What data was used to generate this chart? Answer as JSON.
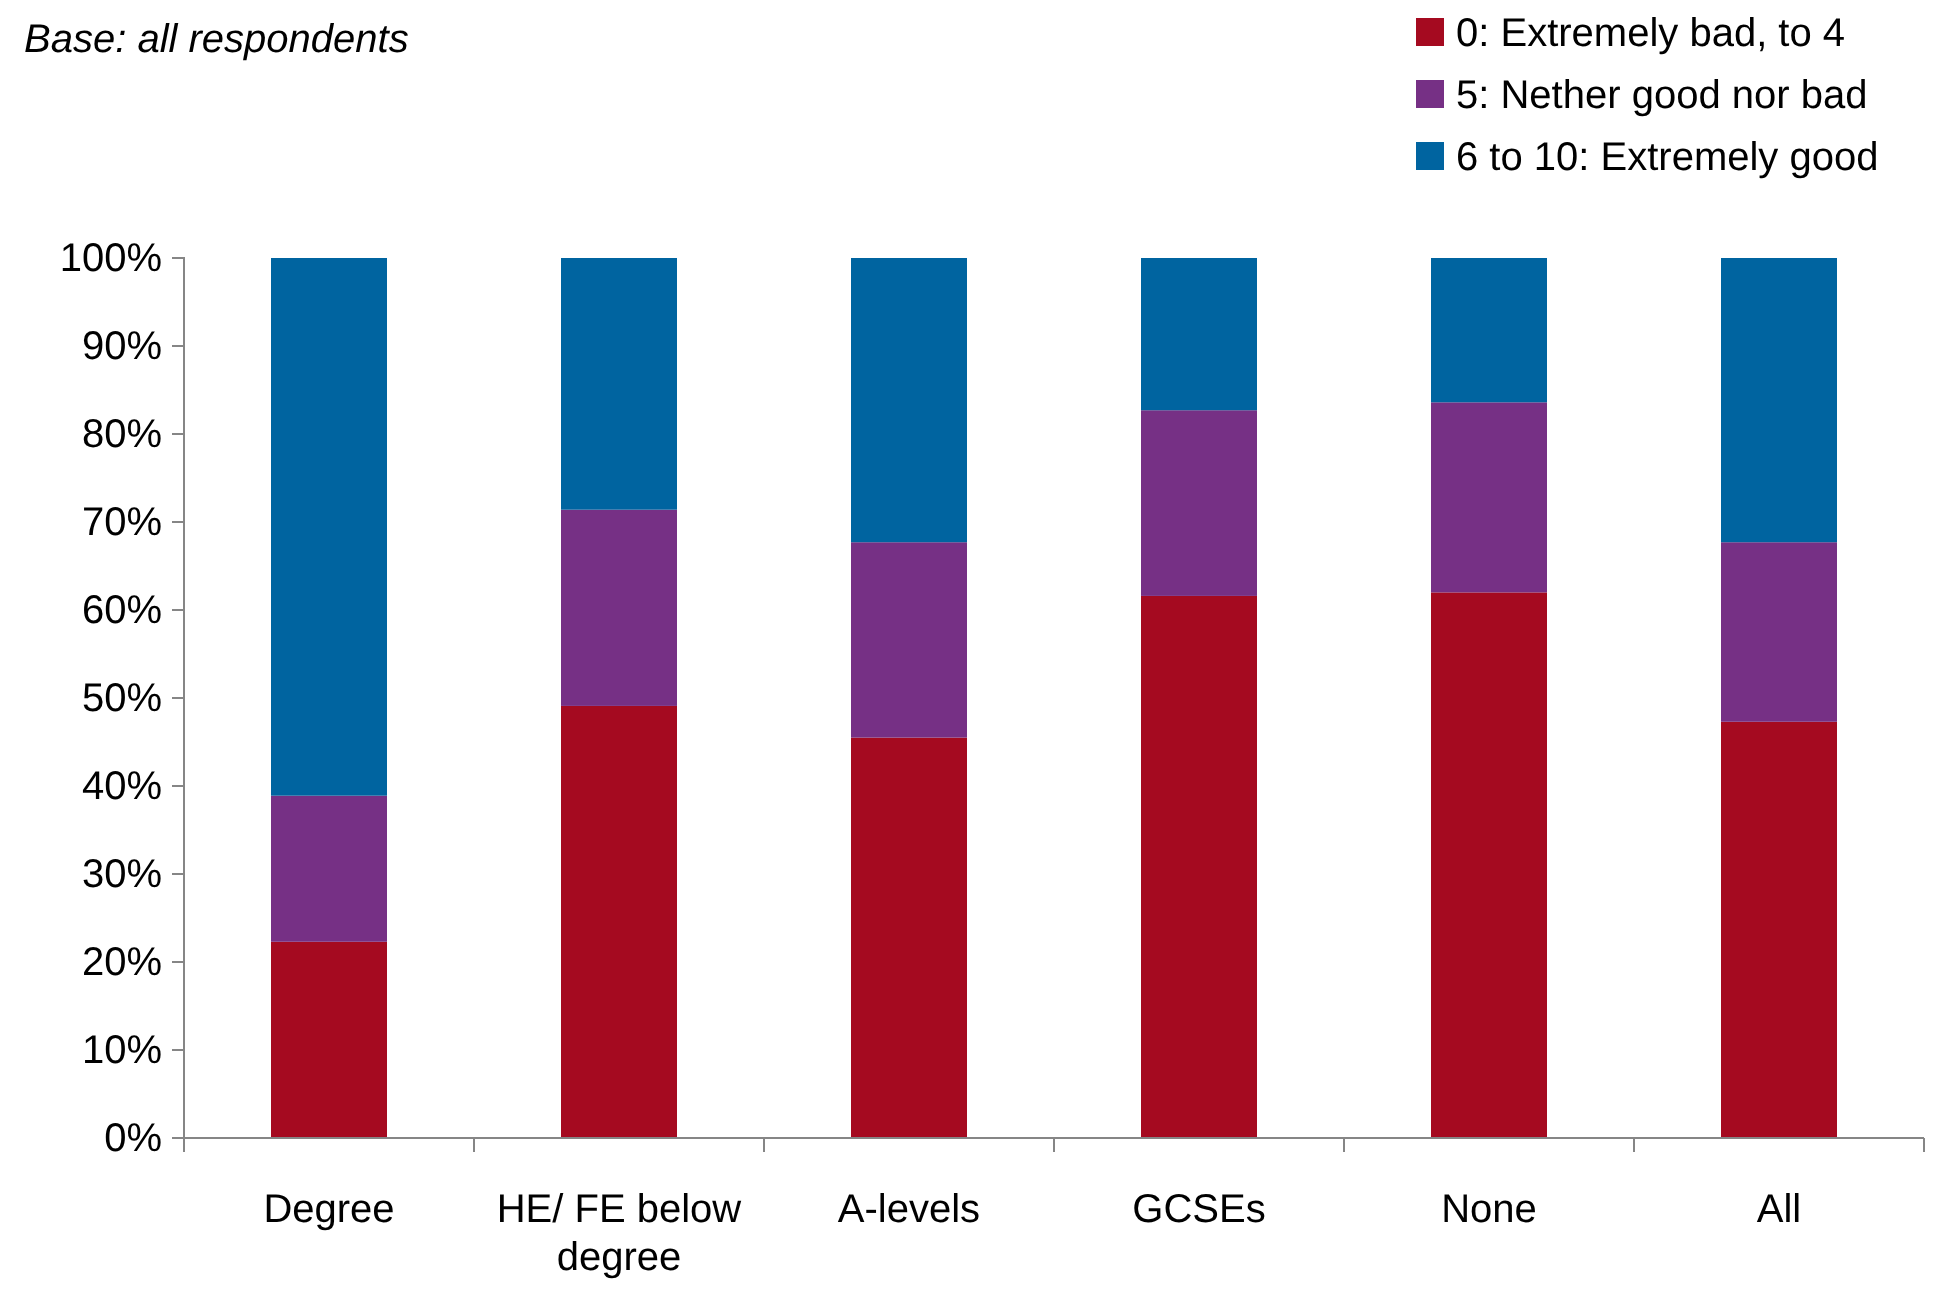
{
  "chart_data": {
    "type": "bar",
    "stacked": true,
    "annotations": [
      "Base: all respondents"
    ],
    "categories": [
      "Degree",
      "HE/ FE below degree",
      "A-levels",
      "GCSEs",
      "None",
      "All"
    ],
    "series": [
      {
        "name": "0: Extremely bad, to 4",
        "color": "#a50a20",
        "values": [
          22.3,
          49.1,
          45.5,
          61.6,
          62.0,
          47.3
        ]
      },
      {
        "name": "5: Nether good nor bad",
        "color": "#763085",
        "values": [
          16.6,
          22.3,
          22.2,
          21.1,
          21.6,
          20.4
        ]
      },
      {
        "name": "6 to 10: Extremely good",
        "color": "#0064a0",
        "values": [
          61.1,
          28.6,
          32.3,
          17.3,
          16.4,
          32.3
        ]
      }
    ],
    "ylim": [
      0,
      100
    ],
    "yticks": [
      {
        "value": 0,
        "label": "0%"
      },
      {
        "value": 10,
        "label": "10%"
      },
      {
        "value": 20,
        "label": "20%"
      },
      {
        "value": 30,
        "label": "30%"
      },
      {
        "value": 40,
        "label": "40%"
      },
      {
        "value": 50,
        "label": "50%"
      },
      {
        "value": 60,
        "label": "60%"
      },
      {
        "value": 70,
        "label": "70%"
      },
      {
        "value": 80,
        "label": "80%"
      },
      {
        "value": 90,
        "label": "90%"
      },
      {
        "value": 100,
        "label": "100%"
      }
    ],
    "legend": "top right",
    "grid": false
  }
}
